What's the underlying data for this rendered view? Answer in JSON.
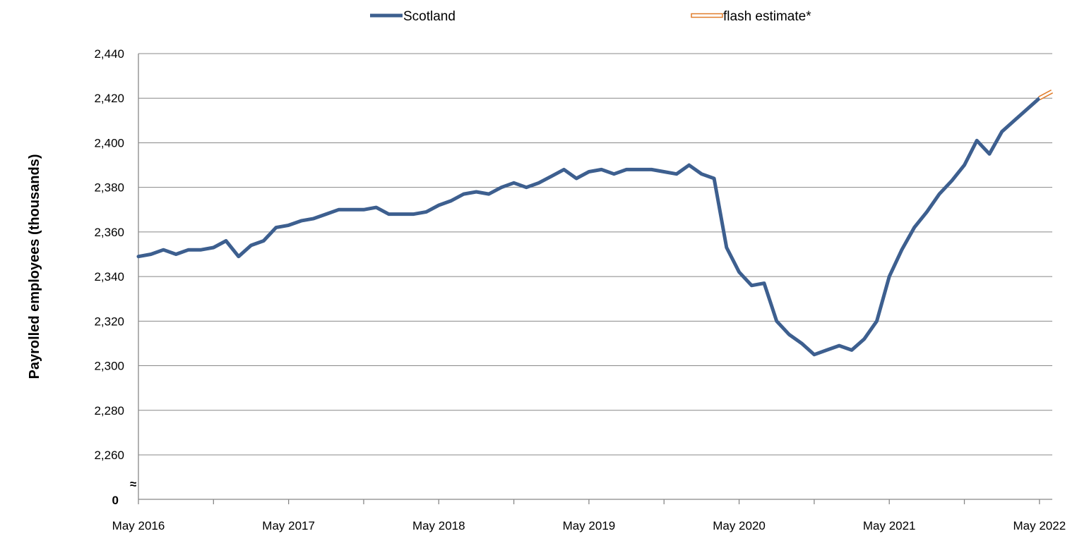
{
  "chart_data": {
    "type": "line",
    "ylabel": "Payrolled employees (thousands)",
    "ylim": [
      2250,
      2440
    ],
    "yticks": [
      2260,
      2280,
      2300,
      2320,
      2340,
      2360,
      2380,
      2400,
      2420,
      2440
    ],
    "ytick_labels": [
      "2,260",
      "2,280",
      "2,300",
      "2,320",
      "2,340",
      "2,360",
      "2,380",
      "2,400",
      "2,420",
      "2,440"
    ],
    "y_break_label": "0",
    "y_break_symbol": "≈",
    "x_start": "May 2016",
    "x_end": "Jun 2022",
    "xtick_labels": [
      "May 2016",
      "May 2017",
      "May 2018",
      "May 2019",
      "May 2020",
      "May 2021",
      "May 2022"
    ],
    "legend_position": "top",
    "grid": true,
    "series": [
      {
        "name": "Scotland",
        "color": "#3d5f8f",
        "style": "solid",
        "x": [
          "May 2016",
          "Jun 2016",
          "Jul 2016",
          "Aug 2016",
          "Sep 2016",
          "Oct 2016",
          "Nov 2016",
          "Dec 2016",
          "Jan 2017",
          "Feb 2017",
          "Mar 2017",
          "Apr 2017",
          "May 2017",
          "Jun 2017",
          "Jul 2017",
          "Aug 2017",
          "Sep 2017",
          "Oct 2017",
          "Nov 2017",
          "Dec 2017",
          "Jan 2018",
          "Feb 2018",
          "Mar 2018",
          "Apr 2018",
          "May 2018",
          "Jun 2018",
          "Jul 2018",
          "Aug 2018",
          "Sep 2018",
          "Oct 2018",
          "Nov 2018",
          "Dec 2018",
          "Jan 2019",
          "Feb 2019",
          "Mar 2019",
          "Apr 2019",
          "May 2019",
          "Jun 2019",
          "Jul 2019",
          "Aug 2019",
          "Sep 2019",
          "Oct 2019",
          "Nov 2019",
          "Dec 2019",
          "Jan 2020",
          "Feb 2020",
          "Mar 2020",
          "Apr 2020",
          "May 2020",
          "Jun 2020",
          "Jul 2020",
          "Aug 2020",
          "Sep 2020",
          "Oct 2020",
          "Nov 2020",
          "Dec 2020",
          "Jan 2021",
          "Feb 2021",
          "Mar 2021",
          "Apr 2021",
          "May 2021",
          "Jun 2021",
          "Jul 2021",
          "Aug 2021",
          "Sep 2021",
          "Oct 2021",
          "Nov 2021",
          "Dec 2021",
          "Jan 2022",
          "Feb 2022",
          "Mar 2022",
          "Apr 2022",
          "May 2022"
        ],
        "values": [
          2349,
          2350,
          2352,
          2350,
          2352,
          2352,
          2353,
          2356,
          2349,
          2354,
          2356,
          2362,
          2363,
          2365,
          2366,
          2368,
          2370,
          2370,
          2370,
          2371,
          2368,
          2368,
          2368,
          2369,
          2372,
          2374,
          2377,
          2378,
          2377,
          2380,
          2382,
          2380,
          2382,
          2385,
          2388,
          2384,
          2387,
          2388,
          2386,
          2388,
          2388,
          2388,
          2387,
          2386,
          2390,
          2386,
          2384,
          2353,
          2342,
          2336,
          2337,
          2320,
          2314,
          2310,
          2305,
          2307,
          2309,
          2307,
          2312,
          2320,
          2340,
          2352,
          2362,
          2369,
          2377,
          2383,
          2390,
          2401,
          2395,
          2405,
          2410,
          2415,
          2420
        ]
      },
      {
        "name": "flash estimate*",
        "color": "#e07c2a",
        "style": "double",
        "x": [
          "May 2022",
          "Jun 2022"
        ],
        "values": [
          2420,
          2423
        ]
      }
    ]
  }
}
